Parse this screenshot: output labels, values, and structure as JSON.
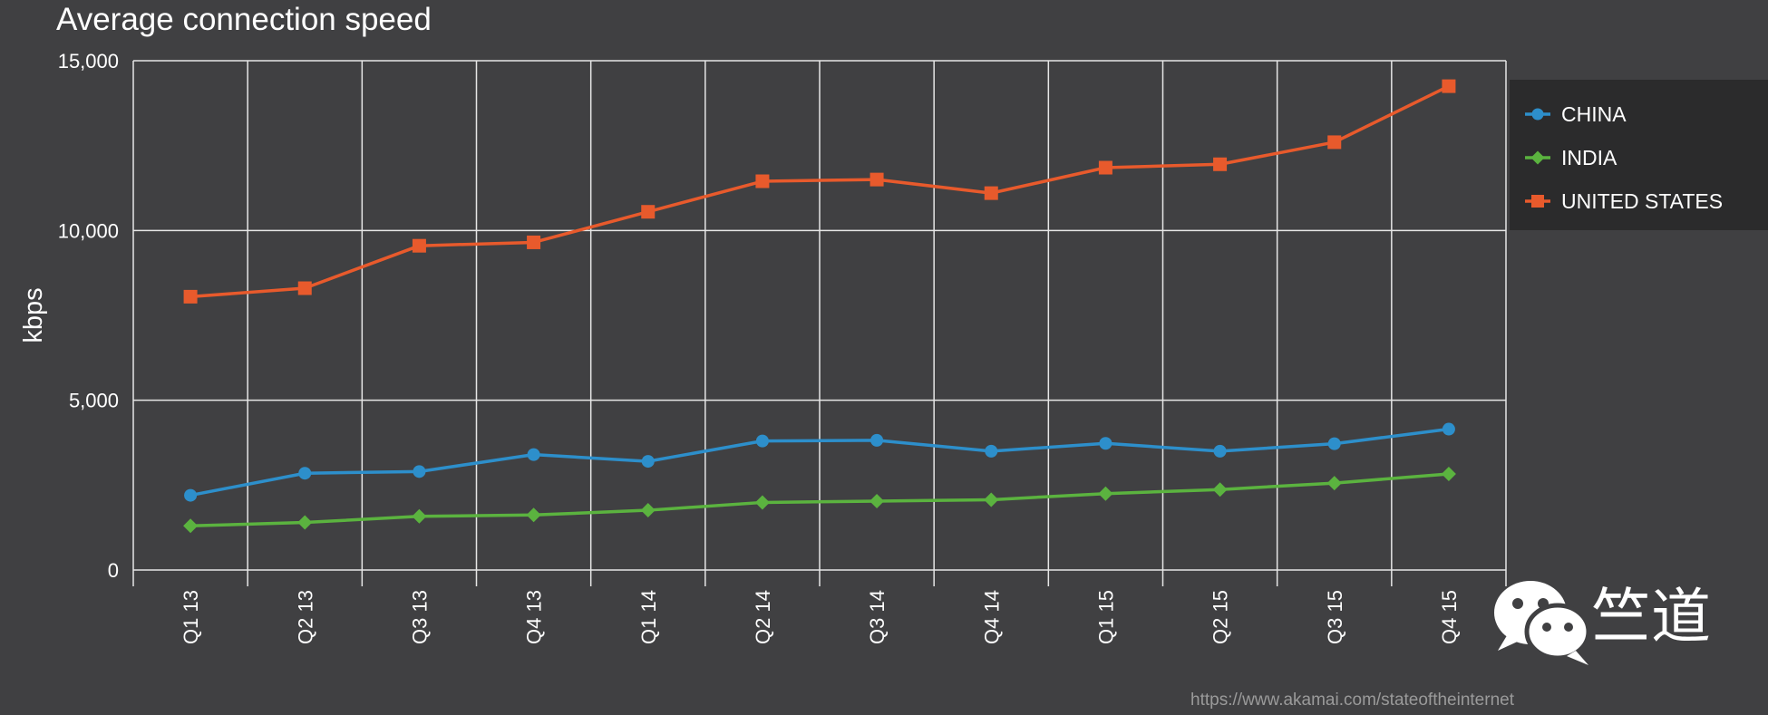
{
  "chart_data": {
    "type": "line",
    "title": "Average connection speed",
    "ylabel": "kbps",
    "xlabel": "",
    "categories": [
      "Q1 13",
      "Q2 13",
      "Q3 13",
      "Q4 13",
      "Q1 14",
      "Q2 14",
      "Q3 14",
      "Q4 14",
      "Q1 15",
      "Q2 15",
      "Q3 15",
      "Q4 15"
    ],
    "ylim": [
      0,
      15000
    ],
    "yticks": [
      {
        "value": 0,
        "label": "0"
      },
      {
        "value": 5000,
        "label": "5,000"
      },
      {
        "value": 10000,
        "label": "10,000"
      },
      {
        "value": 15000,
        "label": "15,000"
      }
    ],
    "grid": true,
    "legend_position": "right",
    "series": [
      {
        "name": "CHINA",
        "color": "#2d8fcb",
        "marker": "circle",
        "values": [
          2200,
          2850,
          2900,
          3400,
          3200,
          3800,
          3820,
          3500,
          3730,
          3500,
          3720,
          4150
        ]
      },
      {
        "name": "INDIA",
        "color": "#5bb33f",
        "marker": "diamond",
        "values": [
          1300,
          1400,
          1580,
          1620,
          1760,
          1990,
          2030,
          2070,
          2250,
          2370,
          2560,
          2830
        ]
      },
      {
        "name": "UNITED STATES",
        "color": "#e85a2c",
        "marker": "square",
        "values": [
          8050,
          8300,
          9550,
          9650,
          10550,
          11450,
          11500,
          11100,
          11850,
          11950,
          12600,
          14250
        ]
      }
    ]
  },
  "watermark": {
    "logo_icon": "wechat-icon",
    "brand_text": "竺道"
  },
  "source_url": "https://www.akamai.com/stateoftheinternet",
  "colors": {
    "background": "#404042",
    "grid": "#e6e6e6",
    "legend_background": "#2b2b2c",
    "text": "#ffffff",
    "source_text": "#9a9a9a"
  }
}
